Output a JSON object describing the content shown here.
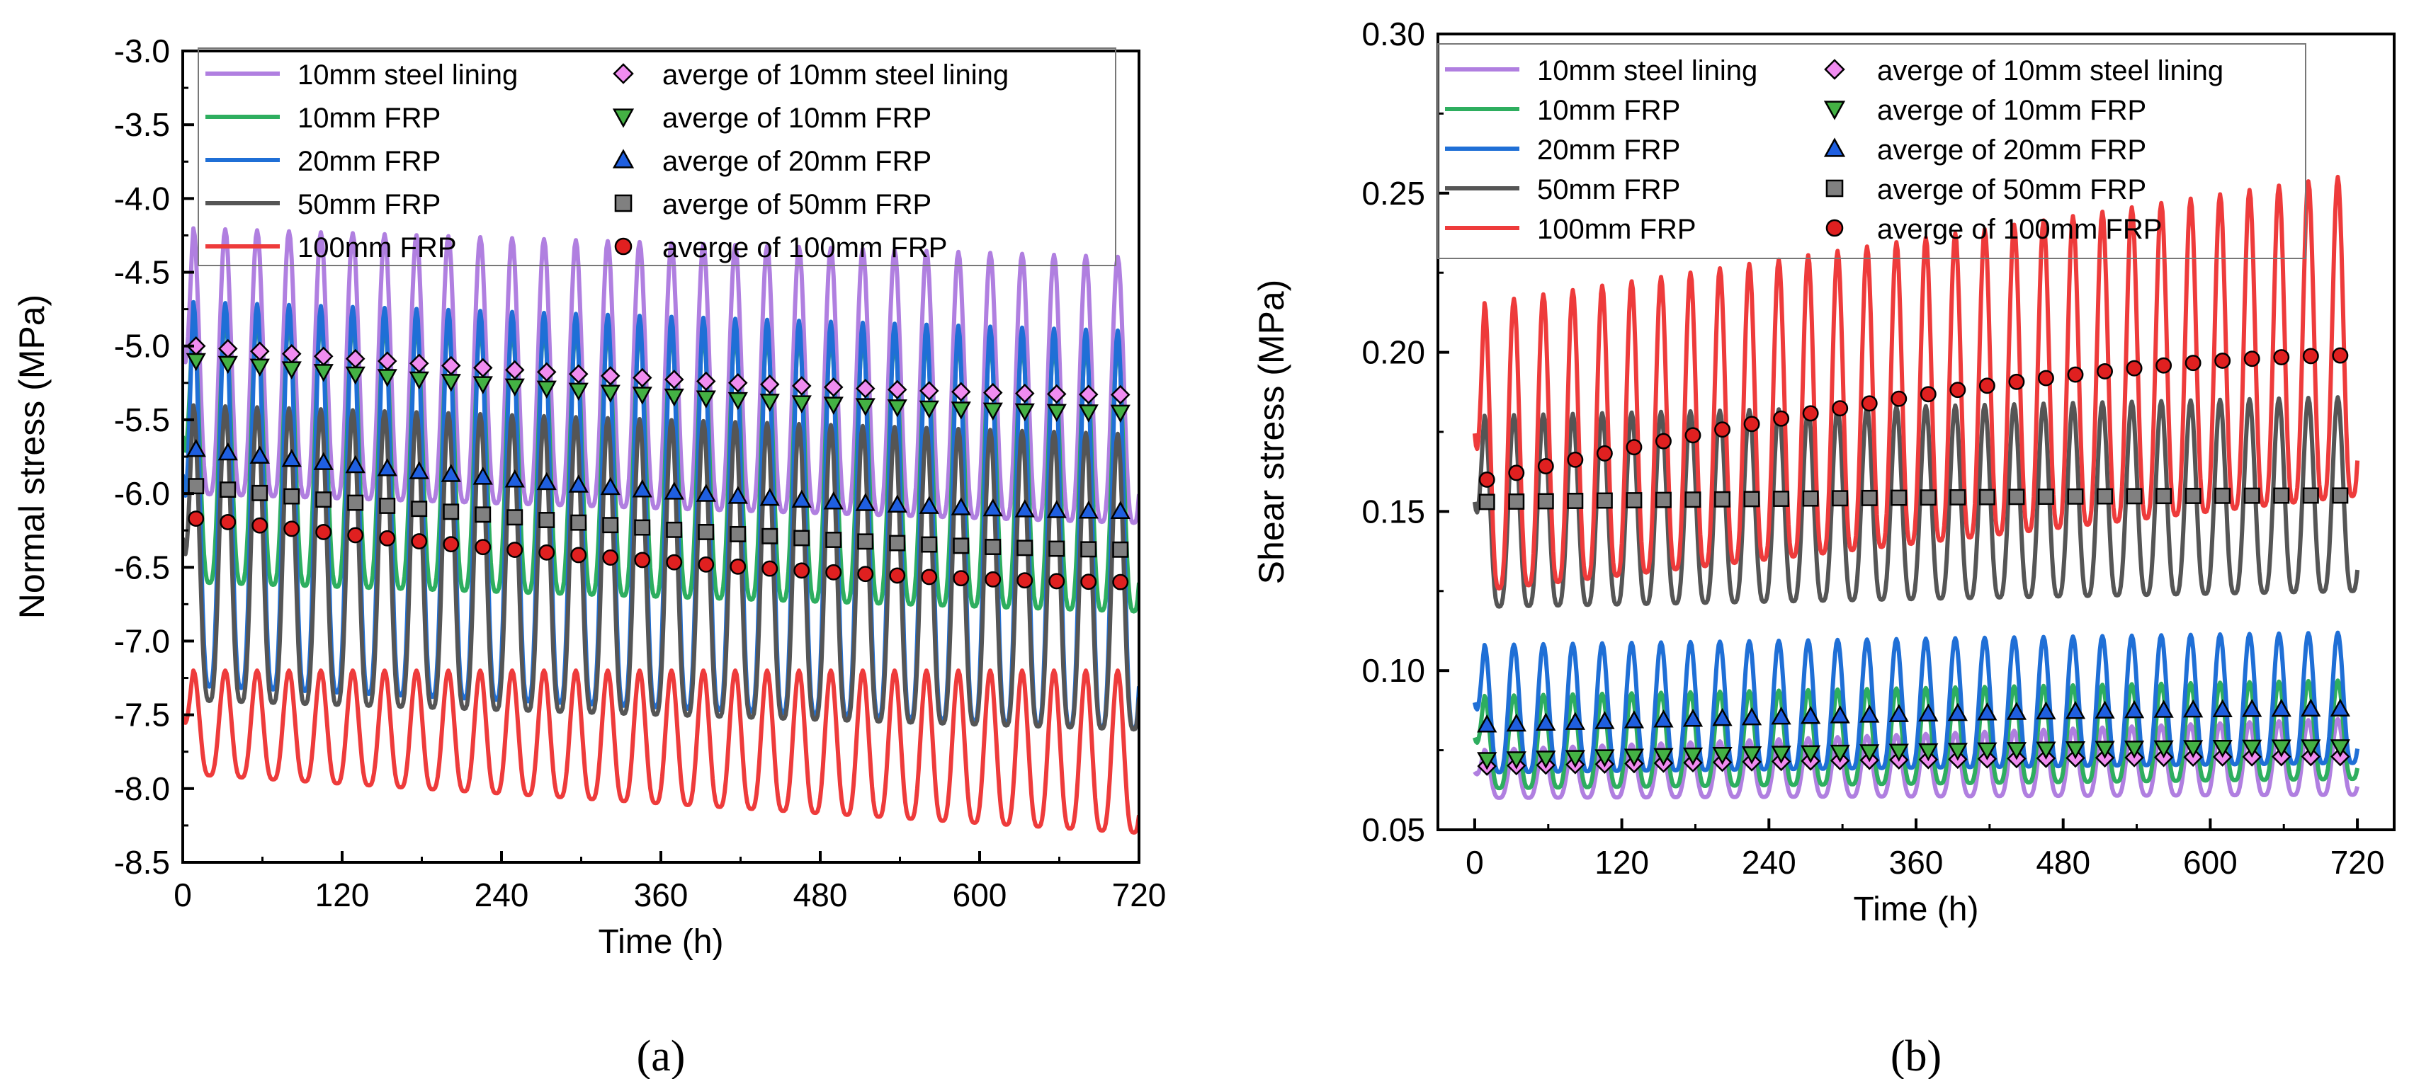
{
  "colors": {
    "steel": "#B07FE0",
    "frp10": "#2EAE5F",
    "frp20": "#1F6FD6",
    "frp50": "#555555",
    "frp100": "#EE3B3B",
    "avg_steel": "#F08CF0",
    "avg_frp10": "#44B144",
    "avg_frp20": "#1F5FE0",
    "avg_frp50": "#808080",
    "avg_frp100": "#E02020"
  },
  "legend": {
    "lines": [
      "10mm steel lining",
      "10mm FRP",
      "20mm FRP",
      "50mm FRP",
      "100mm FRP"
    ],
    "markers": [
      "averge of 10mm steel lining",
      "averge of 10mm FRP",
      "averge of 20mm FRP",
      "averge of 50mm FRP",
      "averge of 100mm FRP"
    ],
    "marker_shapes": [
      "diamond",
      "triangle-down",
      "triangle-up",
      "square",
      "circle"
    ]
  },
  "chart_data": [
    {
      "id": "a",
      "panel_label": "(a)",
      "type": "line",
      "title": "",
      "xlabel": "Time (h)",
      "ylabel": "Normal stress (MPa)",
      "xlim": [
        0,
        720
      ],
      "ylim": [
        -8.5,
        -3.0
      ],
      "xticks": [
        "0",
        "120",
        "240",
        "360",
        "480",
        "600",
        "720"
      ],
      "yticks": [
        "-3.0",
        "-3.5",
        "-4.0",
        "-4.5",
        "-5.0",
        "-5.5",
        "-6.0",
        "-6.5",
        "-7.0",
        "-7.5",
        "-8.0",
        "-8.5"
      ],
      "cycle_period_h": 24,
      "cycles": 30,
      "avg_x_start": 10,
      "avg_x_step": 24,
      "series": [
        {
          "name": "10mm steel lining",
          "max_start": -4.2,
          "max_end": -4.4,
          "min_start": -6.0,
          "min_end": -6.2
        },
        {
          "name": "10mm FRP",
          "max_start": -4.8,
          "max_end": -5.0,
          "min_start": -6.6,
          "min_end": -6.8
        },
        {
          "name": "20mm FRP",
          "max_start": -4.7,
          "max_end": -4.9,
          "min_start": -7.3,
          "min_end": -7.6
        },
        {
          "name": "50mm FRP",
          "max_start": -5.4,
          "max_end": -5.6,
          "min_start": -7.4,
          "min_end": -7.6
        },
        {
          "name": "100mm FRP",
          "max_start": -7.2,
          "max_end": -7.2,
          "min_start": -7.9,
          "min_end": -8.3
        }
      ],
      "averages": [
        {
          "name": "averge of 10mm steel lining",
          "start": -5.0,
          "end": -5.33
        },
        {
          "name": "averge of 10mm FRP",
          "start": -5.1,
          "end": -5.45
        },
        {
          "name": "averge of 20mm FRP",
          "start": -5.7,
          "end": -6.12
        },
        {
          "name": "averge of 50mm FRP",
          "start": -5.95,
          "end": -6.38
        },
        {
          "name": "averge of 100mm FRP",
          "start": -6.17,
          "end": -6.6
        }
      ]
    },
    {
      "id": "b",
      "panel_label": "(b)",
      "type": "line",
      "title": "",
      "xlabel": "Time (h)",
      "ylabel": "Shear stress (MPa)",
      "xlim": [
        -30,
        750
      ],
      "ylim": [
        0.05,
        0.3
      ],
      "xticks": [
        "0",
        "120",
        "240",
        "360",
        "480",
        "600",
        "720"
      ],
      "yticks": [
        "0.05",
        "0.10",
        "0.15",
        "0.20",
        "0.25",
        "0.30"
      ],
      "cycle_period_h": 24,
      "cycles": 30,
      "avg_x_start": 10,
      "avg_x_step": 24,
      "series": [
        {
          "name": "10mm steel lining",
          "max_start": 0.075,
          "max_end": 0.085,
          "min_start": 0.06,
          "min_end": 0.061
        },
        {
          "name": "10mm FRP",
          "max_start": 0.092,
          "max_end": 0.097,
          "min_start": 0.063,
          "min_end": 0.066
        },
        {
          "name": "20mm FRP",
          "max_start": 0.108,
          "max_end": 0.112,
          "min_start": 0.068,
          "min_end": 0.071
        },
        {
          "name": "50mm FRP",
          "max_start": 0.18,
          "max_end": 0.186,
          "min_start": 0.12,
          "min_end": 0.125
        },
        {
          "name": "100mm FRP",
          "max_start": 0.215,
          "max_end": 0.256,
          "min_start": 0.125,
          "min_end": 0.155
        }
      ],
      "averages": [
        {
          "name": "averge of 10mm steel lining",
          "start": 0.07,
          "end": 0.073
        },
        {
          "name": "averge of 10mm FRP",
          "start": 0.072,
          "end": 0.076
        },
        {
          "name": "averge of 20mm FRP",
          "start": 0.083,
          "end": 0.088
        },
        {
          "name": "averge of 50mm FRP",
          "start": 0.153,
          "end": 0.155
        },
        {
          "name": "averge of 100mm FRP",
          "start": 0.16,
          "end": 0.199
        }
      ]
    }
  ]
}
